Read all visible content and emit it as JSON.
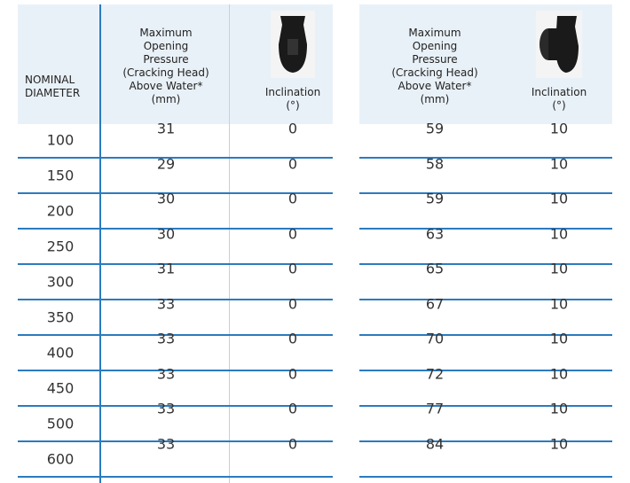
{
  "table": {
    "headers": [
      [
        "NOMINAL",
        "DIAMETER"
      ],
      [
        "Maximum",
        "Opening",
        "Pressure",
        "(Cracking Head)",
        "Above Water*",
        "(mm)"
      ],
      [
        "Inclination",
        "(°)"
      ],
      [
        "Maximum",
        "Opening",
        "Pressure",
        "(Cracking Head)",
        "Above Water*",
        "(mm)"
      ],
      [
        "Inclination",
        "(°)"
      ]
    ],
    "rows": [
      [
        "100",
        "31",
        "0",
        "59",
        "10"
      ],
      [
        "150",
        "29",
        "0",
        "58",
        "10"
      ],
      [
        "200",
        "30",
        "0",
        "59",
        "10"
      ],
      [
        "250",
        "30",
        "0",
        "63",
        "10"
      ],
      [
        "300",
        "31",
        "0",
        "65",
        "10"
      ],
      [
        "350",
        "33",
        "0",
        "67",
        "10"
      ],
      [
        "400",
        "33",
        "0",
        "70",
        "10"
      ],
      [
        "450",
        "33",
        "0",
        "72",
        "10"
      ],
      [
        "500",
        "33",
        "0",
        "77",
        "10"
      ],
      [
        "600",
        "33",
        "0",
        "84",
        "10"
      ]
    ]
  }
}
